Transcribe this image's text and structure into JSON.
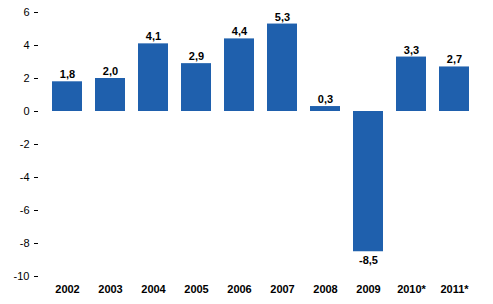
{
  "chart_data": {
    "type": "bar",
    "categories": [
      "2002",
      "2003",
      "2004",
      "2005",
      "2006",
      "2007",
      "2008",
      "2009",
      "2010*",
      "2011*"
    ],
    "values": [
      1.8,
      2.0,
      4.1,
      2.9,
      4.4,
      5.3,
      0.3,
      -8.5,
      3.3,
      2.7
    ],
    "value_labels": [
      "1,8",
      "2,0",
      "4,1",
      "2,9",
      "4,4",
      "5,3",
      "0,3",
      "-8,5",
      "3,3",
      "2,7"
    ],
    "color": "#1f60ad",
    "ylim": [
      -10,
      6
    ],
    "yticks": [
      -10,
      -8,
      -6,
      -4,
      -2,
      0,
      2,
      4,
      6
    ],
    "grid": false,
    "data_labels": true
  }
}
